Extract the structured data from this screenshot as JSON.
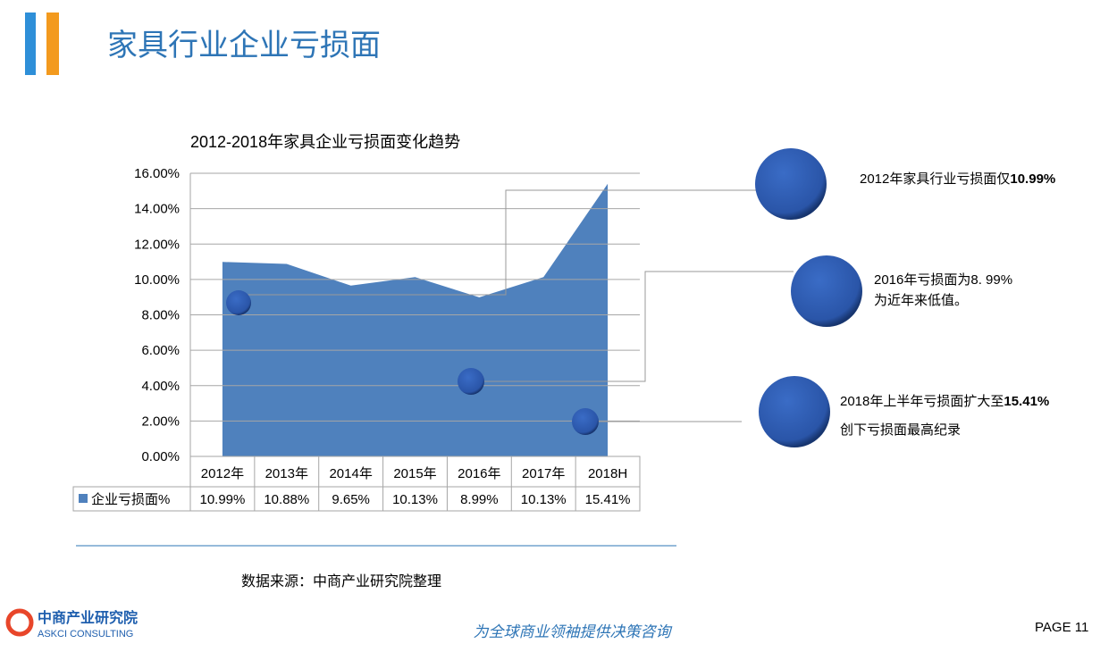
{
  "header": {
    "title": "家具行业企业亏损面"
  },
  "chart_data": {
    "type": "area",
    "title": "2012-2018年家具企业亏损面变化趋势",
    "categories": [
      "2012年",
      "2013年",
      "2014年",
      "2015年",
      "2016年",
      "2017年",
      "2018H"
    ],
    "series": [
      {
        "name": "企业亏损面%",
        "color": "#4f81bd",
        "values": [
          10.99,
          10.88,
          9.65,
          10.13,
          8.99,
          10.13,
          15.41
        ],
        "value_labels": [
          "10.99%",
          "10.88%",
          "9.65%",
          "10.13%",
          "8.99%",
          "10.13%",
          "15.41%"
        ]
      }
    ],
    "ylim": [
      0,
      16
    ],
    "yticks": [
      {
        "value": 0,
        "label": "0.00%"
      },
      {
        "value": 2,
        "label": "2.00%"
      },
      {
        "value": 4,
        "label": "4.00%"
      },
      {
        "value": 6,
        "label": "6.00%"
      },
      {
        "value": 8,
        "label": "8.00%"
      },
      {
        "value": 10,
        "label": "10.00%"
      },
      {
        "value": 12,
        "label": "12.00%"
      },
      {
        "value": 14,
        "label": "14.00%"
      },
      {
        "value": 16,
        "label": "16.00%"
      }
    ],
    "grid": true,
    "data_table": true
  },
  "annotations": [
    {
      "text": "2012年家具行业亏损面仅",
      "bold": "10.99%"
    },
    {
      "text": "2016年亏损面为8. 99%",
      "line2": "为近年来低值。"
    },
    {
      "text": "2018年上半年亏损面扩大至",
      "bold": "15.41%",
      "line2": "创下亏损面最高纪录"
    }
  ],
  "footer": {
    "source": "数据来源：中商产业研究院整理",
    "logo_cn": "中商产业研究院",
    "logo_en": "ASKCI CONSULTING",
    "slogan": "为全球商业领袖提供决策咨询",
    "page": "PAGE  11"
  }
}
